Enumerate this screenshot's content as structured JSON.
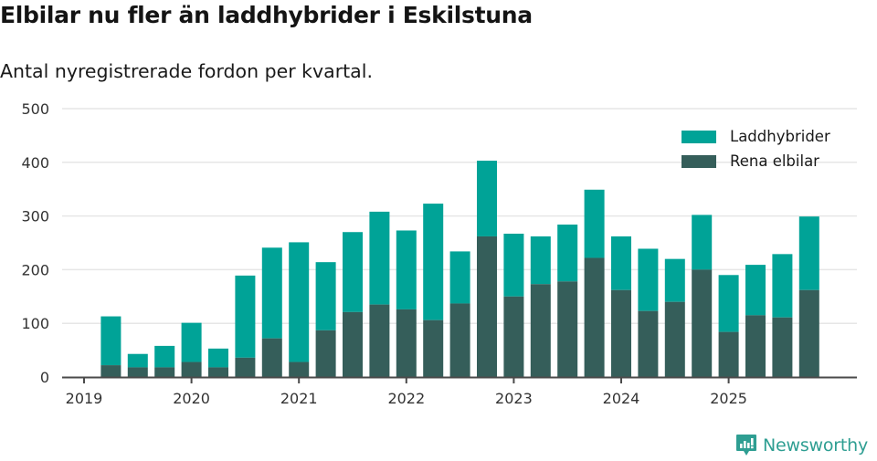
{
  "header": {
    "title": "Elbilar nu fler än laddhybrider i Eskilstuna",
    "subtitle": "Antal nyregistrerade fordon per kvartal."
  },
  "legend": {
    "items": [
      {
        "label": "Laddhybrider",
        "color": "#00A397"
      },
      {
        "label": "Rena elbilar",
        "color": "#355E5A"
      }
    ]
  },
  "brand": {
    "name": "Newsworthy",
    "icon": "bar-chart-speech-bubble-icon",
    "color": "#2E9E92"
  },
  "colors": {
    "laddhybrider": "#00A397",
    "rena_elbilar": "#355E5A",
    "grid": "#E6E6E6",
    "axis": "#4A4A4A",
    "tick_label": "#333333"
  },
  "chart_data": {
    "type": "bar",
    "stacked": true,
    "title": "Elbilar nu fler än laddhybrider i Eskilstuna",
    "subtitle": "Antal nyregistrerade fordon per kvartal.",
    "xlabel": "",
    "ylabel": "",
    "ylim": [
      0,
      500
    ],
    "yticks": [
      0,
      100,
      200,
      300,
      400,
      500
    ],
    "xticks": [
      "2019",
      "2020",
      "2021",
      "2022",
      "2023",
      "2024",
      "2025"
    ],
    "grid": true,
    "legend_position": "top-right",
    "categories": [
      "2019 Q2",
      "2019 Q3",
      "2019 Q4",
      "2020 Q1",
      "2020 Q2",
      "2020 Q3",
      "2020 Q4",
      "2021 Q1",
      "2021 Q2",
      "2021 Q3",
      "2021 Q4",
      "2022 Q1",
      "2022 Q2",
      "2022 Q3",
      "2022 Q4",
      "2023 Q1",
      "2023 Q2",
      "2023 Q3",
      "2023 Q4",
      "2024 Q1",
      "2024 Q2",
      "2024 Q3",
      "2024 Q4",
      "2025 Q1",
      "2025 Q2",
      "2025 Q3",
      "2025 Q4"
    ],
    "series": [
      {
        "name": "Rena elbilar",
        "color": "#355E5A",
        "values": [
          22,
          18,
          18,
          28,
          18,
          36,
          72,
          28,
          87,
          121,
          135,
          126,
          106,
          137,
          262,
          150,
          173,
          178,
          222,
          162,
          123,
          140,
          200,
          84,
          115,
          111,
          162
        ]
      },
      {
        "name": "Laddhybrider",
        "color": "#00A397",
        "values": [
          91,
          25,
          40,
          73,
          35,
          153,
          169,
          223,
          127,
          149,
          173,
          147,
          217,
          97,
          141,
          117,
          89,
          106,
          127,
          100,
          116,
          80,
          102,
          106,
          94,
          118,
          137
        ]
      }
    ],
    "totals": [
      113,
      43,
      58,
      101,
      53,
      189,
      241,
      251,
      214,
      270,
      308,
      273,
      323,
      234,
      403,
      267,
      262,
      284,
      349,
      262,
      239,
      220,
      302,
      190,
      209,
      229,
      299
    ]
  }
}
